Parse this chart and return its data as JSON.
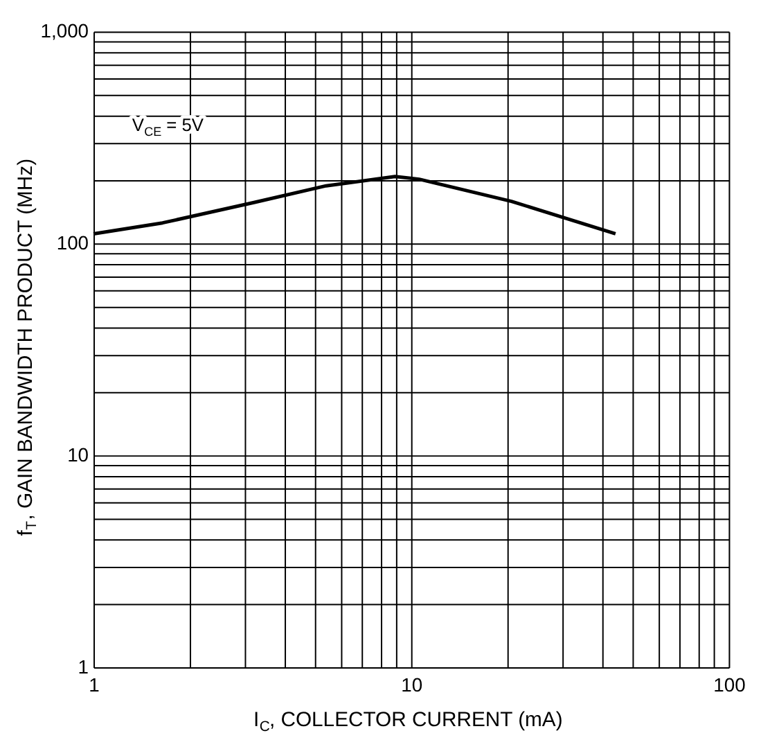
{
  "chart_data": {
    "type": "line",
    "xlabel": "I$_{C}$, COLLECTOR CURRENT (mA)",
    "ylabel": "f$_{T}$, GAIN BANDWIDTH PRODUCT (MHz)",
    "annotations": [
      "V$_{CE}$ = 5V"
    ],
    "x": [
      1,
      1.65,
      3.2,
      5.4,
      8.9,
      10.6,
      20.7,
      44
    ],
    "series": [
      {
        "color": "#000000",
        "values": [
          111,
          125,
          156,
          187,
          207,
          201,
          158,
          111
        ]
      }
    ],
    "log": "xy",
    "xlim": [
      1,
      100
    ],
    "ylim": [
      1,
      1000
    ],
    "xticks": [
      1,
      {
        "value": 2,
        "label": null
      },
      {
        "value": 3,
        "label": null
      },
      {
        "value": 4,
        "label": null
      },
      {
        "value": 5,
        "label": null
      },
      {
        "value": 6,
        "label": null
      },
      {
        "value": 7,
        "label": null
      },
      {
        "value": 8,
        "label": null
      },
      {
        "value": 9,
        "label": null
      },
      10,
      {
        "value": 20,
        "label": null
      },
      {
        "value": 30,
        "label": null
      },
      {
        "value": 40,
        "label": null
      },
      {
        "value": 50,
        "label": null
      },
      {
        "value": 60,
        "label": null
      },
      {
        "value": 70,
        "label": null
      },
      {
        "value": 80,
        "label": null
      },
      {
        "value": 90,
        "label": null
      },
      100
    ],
    "yticks": [
      1,
      {
        "value": 2,
        "label": null
      },
      {
        "value": 3,
        "label": null
      },
      {
        "value": 4,
        "label": null
      },
      {
        "value": 5,
        "label": null
      },
      {
        "value": 6,
        "label": null
      },
      {
        "value": 7,
        "label": null
      },
      {
        "value": 8,
        "label": null
      },
      {
        "value": 9,
        "label": null
      },
      10,
      {
        "value": 20,
        "label": null
      },
      {
        "value": 30,
        "label": null
      },
      {
        "value": 40,
        "label": null
      },
      {
        "value": 50,
        "label": null
      },
      {
        "value": 60,
        "label": null
      },
      {
        "value": 70,
        "label": null
      },
      {
        "value": 80,
        "label": null
      },
      {
        "value": 90,
        "label": null
      },
      100,
      {
        "value": 200,
        "label": null
      },
      {
        "value": 300,
        "label": null
      },
      {
        "value": 400,
        "label": null
      },
      {
        "value": 500,
        "label": null
      },
      {
        "value": 600,
        "label": null
      },
      {
        "value": 700,
        "label": null
      },
      {
        "value": 800,
        "label": null
      },
      {
        "value": 900,
        "label": null
      },
      {
        "value": 1000,
        "label": "1,000"
      }
    ],
    "grid": true,
    "line_style": "solid",
    "marker": "none"
  }
}
